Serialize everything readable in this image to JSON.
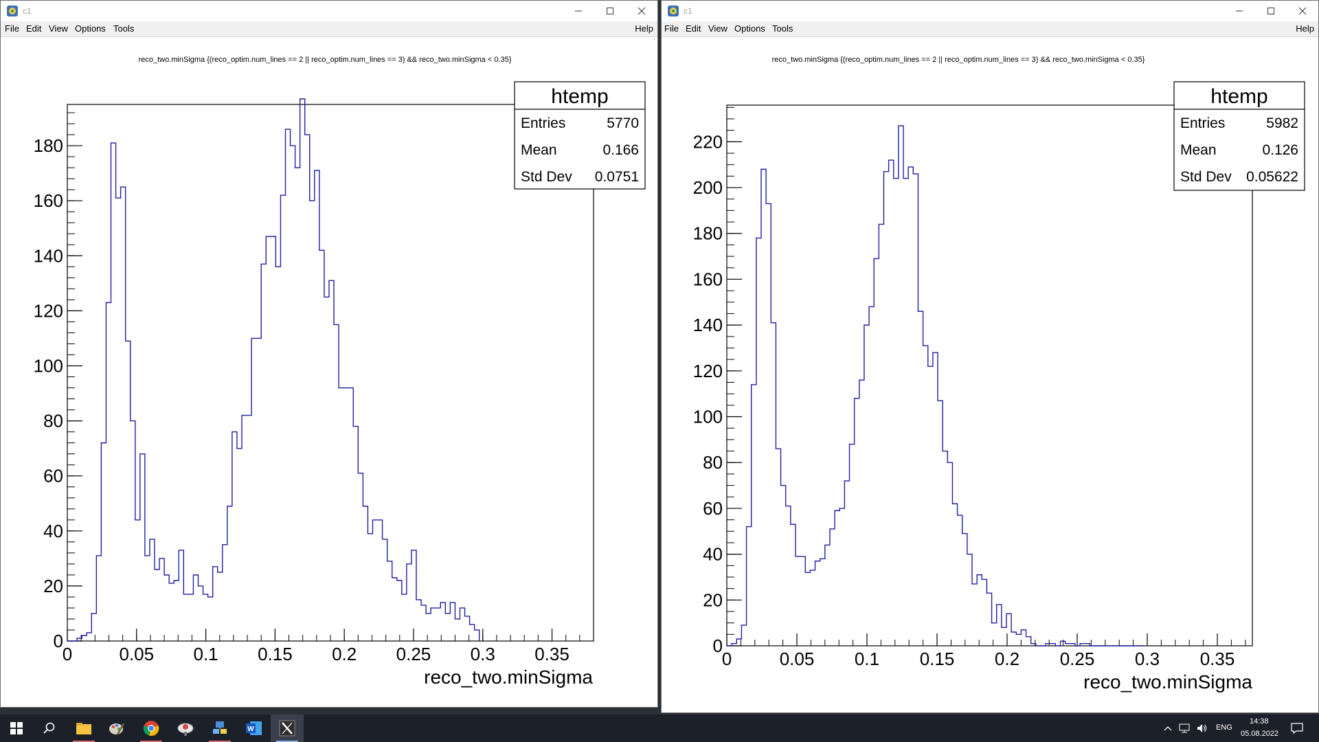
{
  "windows": [
    {
      "title": "c1",
      "menu": {
        "file": "File",
        "edit": "Edit",
        "view": "View",
        "options": "Options",
        "tools": "Tools",
        "help": "Help"
      },
      "hist_title": "reco_two.minSigma {(reco_optim.num_lines == 2 || reco_optim.num_lines == 3)  && reco_two.minSigma < 0.35}",
      "stats": {
        "name": "htemp",
        "rows": [
          {
            "label": "Entries",
            "value": "5770"
          },
          {
            "label": "Mean",
            "value": "0.166"
          },
          {
            "label": "Std Dev",
            "value": "0.0751"
          }
        ]
      }
    },
    {
      "title": "c1",
      "menu": {
        "file": "File",
        "edit": "Edit",
        "view": "View",
        "options": "Options",
        "tools": "Tools",
        "help": "Help"
      },
      "hist_title": "reco_two.minSigma {(reco_optim.num_lines == 2 || reco_optim.num_lines == 3)  && reco_two.minSigma < 0.35}",
      "stats": {
        "name": "htemp",
        "rows": [
          {
            "label": "Entries",
            "value": "5982"
          },
          {
            "label": "Mean",
            "value": "0.126"
          },
          {
            "label": "Std Dev",
            "value": "0.05622"
          }
        ]
      }
    }
  ],
  "chart_data": [
    {
      "type": "bar",
      "title": "reco_two.minSigma {(reco_optim.num_lines == 2 || reco_optim.num_lines == 3)  && reco_two.minSigma < 0.35}",
      "xlabel": "reco_two.minSigma",
      "ylabel": "",
      "xlim": [
        0,
        0.38
      ],
      "ylim": [
        0,
        195
      ],
      "x_ticks": [
        "0",
        "0.05",
        "0.1",
        "0.15",
        "0.2",
        "0.25",
        "0.3",
        "0.35"
      ],
      "y_ticks": [
        "0",
        "20",
        "40",
        "60",
        "80",
        "100",
        "120",
        "140",
        "160",
        "180"
      ],
      "bin_width": 0.0035,
      "bin_start": 0.0,
      "values": [
        0,
        0,
        1,
        2,
        3,
        10,
        31,
        72,
        123,
        181,
        161,
        165,
        109,
        80,
        44,
        68,
        31,
        37,
        26,
        30,
        24,
        21,
        22,
        33,
        17,
        17,
        24,
        20,
        17,
        16,
        27,
        25,
        35,
        49,
        76,
        70,
        82,
        82,
        110,
        110,
        137,
        147,
        147,
        136,
        162,
        186,
        180,
        172,
        197,
        184,
        160,
        171,
        142,
        125,
        131,
        115,
        92,
        92,
        92,
        78,
        61,
        49,
        39,
        44,
        44,
        37,
        29,
        23,
        22,
        17,
        28,
        33,
        15,
        13,
        10,
        12,
        12,
        14,
        10,
        14,
        8,
        12,
        9,
        6,
        4
      ],
      "x_edges_note": ""
    },
    {
      "type": "bar",
      "title": "reco_two.minSigma {(reco_optim.num_lines == 2 || reco_optim.num_lines == 3)  && reco_two.minSigma < 0.35}",
      "xlabel": "reco_two.minSigma",
      "ylabel": "",
      "xlim": [
        0,
        0.375
      ],
      "ylim": [
        0,
        236
      ],
      "x_ticks": [
        "0",
        "0.05",
        "0.1",
        "0.15",
        "0.2",
        "0.25",
        "0.3",
        "0.35"
      ],
      "y_ticks": [
        "0",
        "20",
        "40",
        "60",
        "80",
        "100",
        "120",
        "140",
        "160",
        "180",
        "200",
        "220"
      ],
      "bin_width": 0.0035,
      "bin_start": 0.0,
      "values": [
        0,
        1,
        3,
        9,
        52,
        114,
        178,
        208,
        193,
        141,
        86,
        70,
        61,
        53,
        39,
        39,
        32,
        33,
        37,
        38,
        44,
        51,
        59,
        60,
        72,
        88,
        108,
        116,
        140,
        148,
        169,
        184,
        207,
        212,
        204,
        227,
        204,
        209,
        206,
        146,
        131,
        122,
        128,
        107,
        85,
        80,
        62,
        57,
        49,
        40,
        27,
        31,
        29,
        23,
        10,
        18,
        8,
        14,
        6,
        5,
        7,
        4,
        1,
        0,
        0,
        1,
        1,
        0,
        2,
        1,
        1,
        0,
        1,
        1,
        0,
        0,
        0,
        0,
        0,
        0,
        0,
        0,
        0,
        0,
        0
      ]
    }
  ],
  "taskbar": {
    "apps": [
      "windows-start-icon",
      "search-icon",
      "file-explorer-icon",
      "paint-icon",
      "chrome-icon",
      "satellite-icon",
      "network-app-icon",
      "word-icon",
      "x-app-icon"
    ],
    "lang": "ENG",
    "time": "14:38",
    "date": "05.08.2022"
  }
}
